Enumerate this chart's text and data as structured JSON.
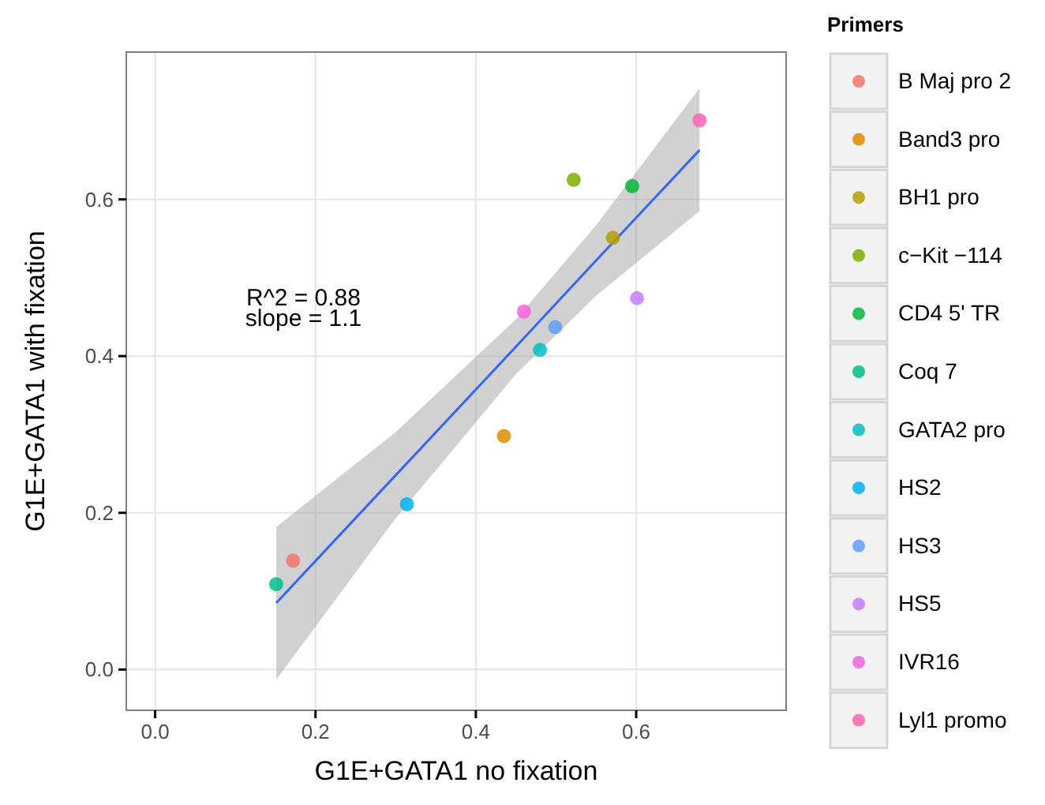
{
  "chart_data": {
    "type": "scatter",
    "xlabel": "G1E+GATA1 no fixation",
    "ylabel": "G1E+GATA1 with fixation",
    "legend_title": "Primers",
    "legend": "right",
    "grid": true,
    "marker": "circle",
    "xlim": [
      -0.036,
      0.787
    ],
    "ylim": [
      -0.052,
      0.788
    ],
    "xticks": [
      {
        "value": 0,
        "label": "0.0"
      },
      0.2,
      0.4,
      0.6
    ],
    "yticks": [
      {
        "value": 0,
        "label": "0.0"
      },
      0.2,
      0.4,
      0.6
    ],
    "annotations": [
      "R^2 =  0.88",
      "slope =  1.1"
    ],
    "series": [
      {
        "name": "B Maj pro 2",
        "color": "#f8766d",
        "x": [
          0.172
        ],
        "values": [
          0.139
        ]
      },
      {
        "name": "Band3 pro",
        "color": "#de8c00",
        "x": [
          0.435
        ],
        "values": [
          0.298
        ]
      },
      {
        "name": "BH1 pro",
        "color": "#b79f00",
        "x": [
          0.571
        ],
        "values": [
          0.551
        ]
      },
      {
        "name": "c−Kit −114",
        "color": "#7cae00",
        "x": [
          0.522
        ],
        "values": [
          0.625
        ]
      },
      {
        "name": "CD4 5' TR",
        "color": "#00ba38",
        "x": [
          0.595
        ],
        "values": [
          0.617
        ]
      },
      {
        "name": "Coq 7",
        "color": "#00c08b",
        "x": [
          0.151
        ],
        "values": [
          0.109
        ]
      },
      {
        "name": "GATA2 pro",
        "color": "#00bfc4",
        "x": [
          0.48
        ],
        "values": [
          0.408
        ]
      },
      {
        "name": "HS2",
        "color": "#00b4f0",
        "x": [
          0.314
        ],
        "values": [
          0.211
        ]
      },
      {
        "name": "HS3",
        "color": "#619cff",
        "x": [
          0.499
        ],
        "values": [
          0.437
        ]
      },
      {
        "name": "HS5",
        "color": "#c77cff",
        "x": [
          0.601
        ],
        "values": [
          0.474
        ]
      },
      {
        "name": "IVR16",
        "color": "#f564e3",
        "x": [
          0.46
        ],
        "values": [
          0.457
        ]
      },
      {
        "name": "Lyl1 promo",
        "color": "#ff64b0",
        "x": [
          0.679
        ],
        "values": [
          0.701
        ]
      },
      {
        "type": "line",
        "color": "#3366ff",
        "marker": "none",
        "x": [
          0.151,
          0.3,
          0.45,
          0.55,
          0.679
        ],
        "values": [
          0.085,
          0.248,
          0.412,
          0.522,
          0.663
        ],
        "lower": [
          -0.013,
          0.193,
          0.377,
          0.477,
          0.585
        ],
        "upper": [
          0.182,
          0.303,
          0.447,
          0.567,
          0.742
        ]
      }
    ]
  }
}
